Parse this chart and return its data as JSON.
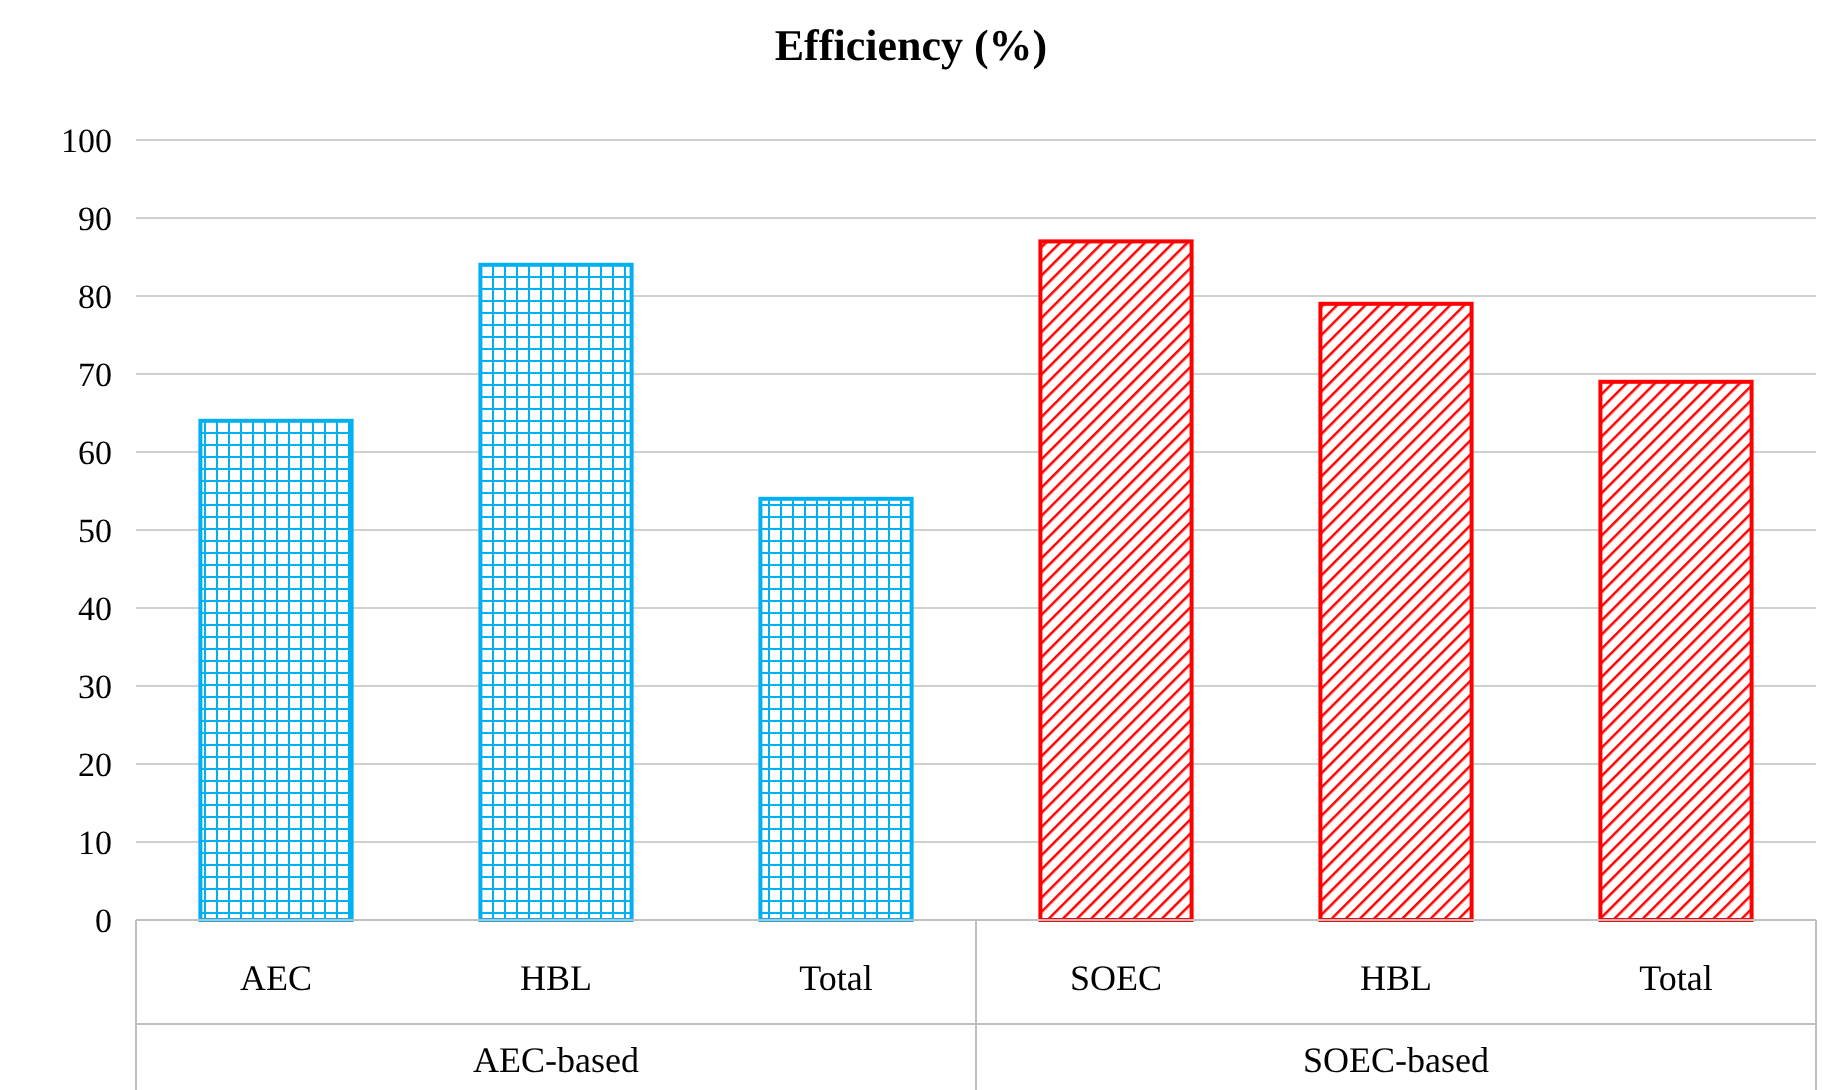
{
  "chart_data": {
    "type": "bar",
    "title": "Efficiency (%)",
    "categories": [
      "AEC",
      "HBL",
      "Total",
      "SOEC",
      "HBL",
      "Total"
    ],
    "values": [
      64,
      84,
      54,
      87,
      79,
      69
    ],
    "colors": [
      "#00b0f0",
      "#00b0f0",
      "#00b0f0",
      "#ff0000",
      "#ff0000",
      "#ff0000"
    ],
    "annotations": [
      "AEC-based",
      "SOEC-based"
    ],
    "ylim": [
      0,
      100
    ],
    "yticks": [
      0,
      10,
      20,
      30,
      40,
      50,
      60,
      70,
      80,
      90,
      100
    ],
    "grid": "y"
  }
}
